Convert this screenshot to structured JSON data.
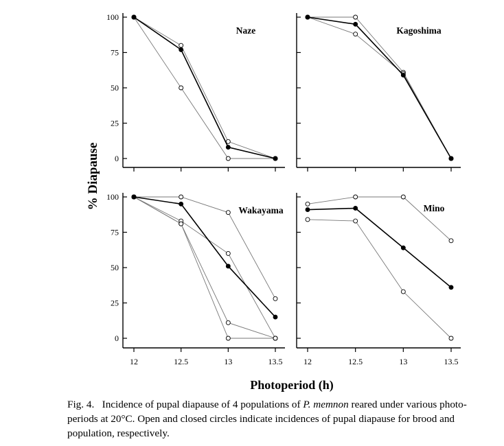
{
  "figure": {
    "ylabel": "% Diapause",
    "xlabel": "Photoperiod (h)",
    "x_ticks": [
      "12",
      "12.5",
      "13",
      "13.5"
    ],
    "y_ticks": [
      "0",
      "25",
      "50",
      "75",
      "100"
    ]
  },
  "caption": {
    "label": "Fig. 4.",
    "text_before": "Incidence of pupal diapause of 4 populations of",
    "species": "P. memnon",
    "text_after": "reared under various photo-periods at 20°C. Open and closed circles indicate incidences of pupal diapause for brood and population, respectively."
  },
  "chart_data": [
    {
      "type": "line",
      "title": "Naze",
      "x": [
        12,
        12.5,
        13,
        13.5
      ],
      "ylim": [
        0,
        100
      ],
      "series": [
        {
          "marker": "open",
          "values": [
            100,
            80,
            12,
            0
          ]
        },
        {
          "marker": "open",
          "values": [
            100,
            50,
            0,
            0
          ]
        },
        {
          "marker": "closed",
          "values": [
            100,
            77,
            8,
            0
          ]
        }
      ]
    },
    {
      "type": "line",
      "title": "Kagoshima",
      "x": [
        12,
        12.5,
        13,
        13.5
      ],
      "ylim": [
        0,
        100
      ],
      "series": [
        {
          "marker": "open",
          "values": [
            100,
            100,
            61,
            0
          ]
        },
        {
          "marker": "open",
          "values": [
            100,
            88,
            60,
            0
          ]
        },
        {
          "marker": "closed",
          "values": [
            100,
            95,
            59,
            0
          ]
        }
      ]
    },
    {
      "type": "line",
      "title": "Wakayama",
      "x": [
        12,
        12.5,
        13,
        13.5
      ],
      "ylim": [
        0,
        100
      ],
      "series": [
        {
          "marker": "open",
          "values": [
            100,
            100,
            89,
            28
          ]
        },
        {
          "marker": "open",
          "values": [
            100,
            83,
            60,
            0
          ]
        },
        {
          "marker": "open",
          "values": [
            100,
            81,
            11,
            0
          ]
        },
        {
          "marker": "open",
          "values": [
            100,
            81,
            0,
            0
          ]
        },
        {
          "marker": "closed",
          "values": [
            100,
            95,
            51,
            15
          ]
        }
      ]
    },
    {
      "type": "line",
      "title": "Mino",
      "x": [
        12,
        12.5,
        13,
        13.5
      ],
      "ylim": [
        0,
        100
      ],
      "series": [
        {
          "marker": "open",
          "values": [
            95,
            100,
            100,
            69
          ]
        },
        {
          "marker": "open",
          "values": [
            84,
            83,
            33,
            0
          ]
        },
        {
          "marker": "closed",
          "values": [
            91,
            92,
            64,
            36
          ]
        }
      ]
    }
  ]
}
